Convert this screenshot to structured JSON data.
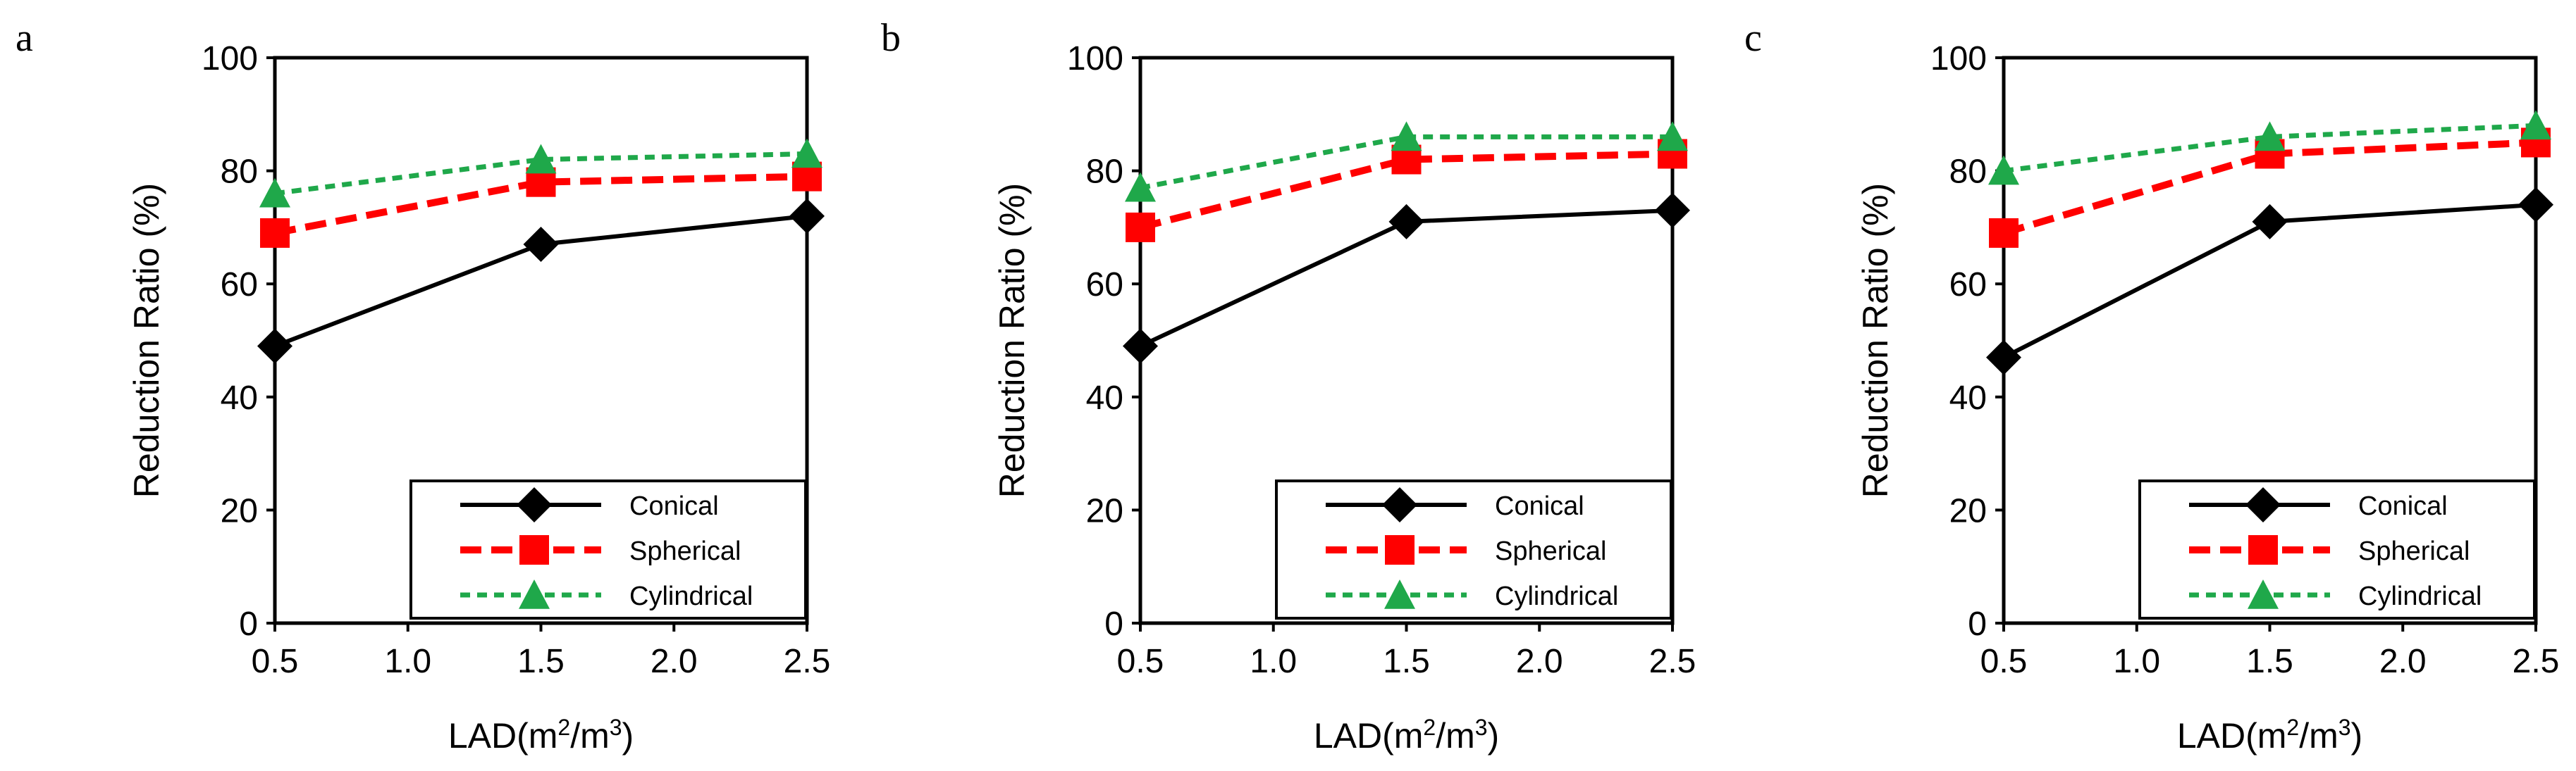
{
  "colors": {
    "Conical": "#000000",
    "Spherical": "#ff0000",
    "Cylindrical": "#1fa84a"
  },
  "chart_data": [
    {
      "type": "line",
      "panel": "a",
      "x_ticks": [
        "0.5",
        "1.0",
        "1.5",
        "2.0",
        "2.5"
      ],
      "y_ticks": [
        "0",
        "20",
        "40",
        "60",
        "80",
        "100"
      ],
      "xlabel": "LAD(m",
      "xlabel_sup1": "2",
      "xlabel_mid": "/m",
      "xlabel_sup2": "3",
      "xlabel_end": ")",
      "ylabel": "Reduction Ratio (%)",
      "xlim": [
        0.5,
        2.5
      ],
      "ylim": [
        0,
        100
      ],
      "legend_position": "bottom-right",
      "x": [
        0.5,
        1.5,
        2.5
      ],
      "series": [
        {
          "name": "Conical",
          "values": [
            49,
            67,
            72
          ],
          "marker": "diamond",
          "dash": "solid"
        },
        {
          "name": "Spherical",
          "values": [
            69,
            78,
            79
          ],
          "marker": "square",
          "dash": "dashed"
        },
        {
          "name": "Cylindrical",
          "values": [
            76,
            82,
            83
          ],
          "marker": "triangle",
          "dash": "dotted"
        }
      ]
    },
    {
      "type": "line",
      "panel": "b",
      "x_ticks": [
        "0.5",
        "1.0",
        "1.5",
        "2.0",
        "2.5"
      ],
      "y_ticks": [
        "0",
        "20",
        "40",
        "60",
        "80",
        "100"
      ],
      "xlabel": "LAD(m",
      "xlabel_sup1": "2",
      "xlabel_mid": "/m",
      "xlabel_sup2": "3",
      "xlabel_end": ")",
      "ylabel": "Reduction Ratio (%)",
      "xlim": [
        0.5,
        2.5
      ],
      "ylim": [
        0,
        100
      ],
      "legend_position": "bottom-right",
      "x": [
        0.5,
        1.5,
        2.5
      ],
      "series": [
        {
          "name": "Conical",
          "values": [
            49,
            71,
            73
          ],
          "marker": "diamond",
          "dash": "solid"
        },
        {
          "name": "Spherical",
          "values": [
            70,
            82,
            83
          ],
          "marker": "square",
          "dash": "dashed"
        },
        {
          "name": "Cylindrical",
          "values": [
            77,
            86,
            86
          ],
          "marker": "triangle",
          "dash": "dotted"
        }
      ]
    },
    {
      "type": "line",
      "panel": "c",
      "x_ticks": [
        "0.5",
        "1.0",
        "1.5",
        "2.0",
        "2.5"
      ],
      "y_ticks": [
        "0",
        "20",
        "40",
        "60",
        "80",
        "100"
      ],
      "xlabel": "LAD(m",
      "xlabel_sup1": "2",
      "xlabel_mid": "/m",
      "xlabel_sup2": "3",
      "xlabel_end": ")",
      "ylabel": "Reduction Ratio (%)",
      "xlim": [
        0.5,
        2.5
      ],
      "ylim": [
        0,
        100
      ],
      "legend_position": "bottom-right",
      "x": [
        0.5,
        1.5,
        2.5
      ],
      "series": [
        {
          "name": "Conical",
          "values": [
            47,
            71,
            74
          ],
          "marker": "diamond",
          "dash": "solid"
        },
        {
          "name": "Spherical",
          "values": [
            69,
            83,
            85
          ],
          "marker": "square",
          "dash": "dashed"
        },
        {
          "name": "Cylindrical",
          "values": [
            80,
            86,
            88
          ],
          "marker": "triangle",
          "dash": "dotted"
        }
      ]
    }
  ]
}
